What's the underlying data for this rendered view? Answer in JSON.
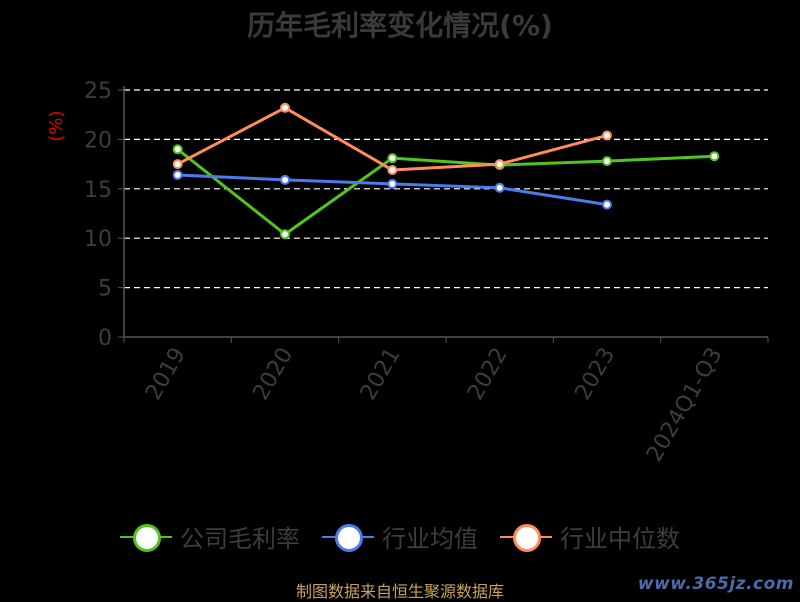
{
  "title": "历年毛利率变化情况(%)",
  "footer": "制图数据来自恒生聚源数据库",
  "watermark": "www.365jz.com",
  "legend": [
    {
      "label": "公司毛利率",
      "color": "#52c41a"
    },
    {
      "label": "行业均值",
      "color": "#4b7bec"
    },
    {
      "label": "行业中位数",
      "color": "#ff8c5a"
    }
  ],
  "chart_data": {
    "type": "line",
    "title": "历年毛利率变化情况(%)",
    "ylabel": "(%)",
    "ylim": [
      0,
      25
    ],
    "yticks": [
      0,
      5,
      10,
      15,
      20,
      25
    ],
    "categories": [
      "2019",
      "2020",
      "2021",
      "2022",
      "2023",
      "2024Q1-Q3"
    ],
    "grid": true,
    "legend_position": "bottom",
    "series": [
      {
        "name": "公司毛利率",
        "color": "#52c41a",
        "values": [
          19.0,
          10.4,
          18.1,
          17.4,
          17.8,
          18.3
        ]
      },
      {
        "name": "行业均值",
        "color": "#4b7bec",
        "values": [
          16.4,
          15.9,
          15.5,
          15.1,
          13.4,
          null
        ]
      },
      {
        "name": "行业中位数",
        "color": "#ff8c5a",
        "values": [
          17.5,
          23.2,
          16.9,
          17.5,
          20.4,
          null
        ]
      }
    ]
  }
}
